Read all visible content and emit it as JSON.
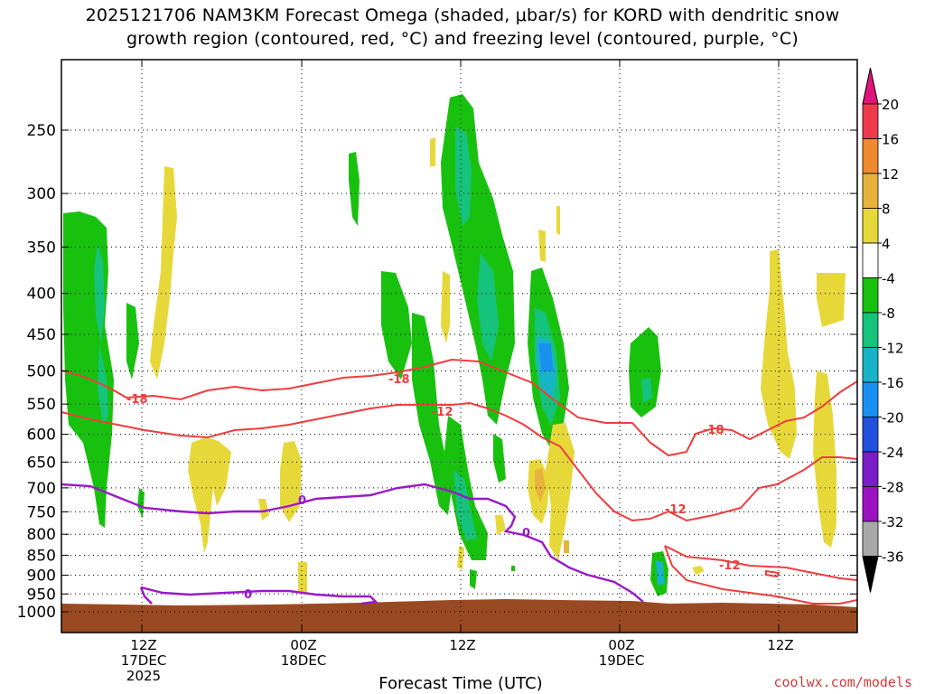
{
  "title_line1": "2025121706 NAM3KM Forecast Omega (shaded, μbar/s) for KORD with dendritic snow",
  "title_line2": "growth region (contoured, red, °C) and freezing level (contoured, purple, °C)",
  "credit": "coolwx.com/models",
  "chart_data": {
    "type": "heatmap",
    "title": "2025121706 NAM3KM Forecast Omega (shaded, μbar/s) for KORD with dendritic snow growth region (contoured, red, °C) and freezing level (contoured, purple, °C)",
    "xlabel": "Forecast Time (UTC)",
    "ylabel": "",
    "y_scale": "log-pressure (inverted)",
    "y_ticks": [
      250,
      300,
      350,
      400,
      450,
      500,
      550,
      600,
      650,
      700,
      750,
      800,
      850,
      900,
      950,
      1000
    ],
    "x_ticks": [
      {
        "line1": "12Z",
        "line2": "17DEC",
        "line3": "2025"
      },
      {
        "line1": "00Z",
        "line2": "18DEC",
        "line3": ""
      },
      {
        "line1": "12Z",
        "line2": "",
        "line3": ""
      },
      {
        "line1": "00Z",
        "line2": "19DEC",
        "line3": ""
      },
      {
        "line1": "12Z",
        "line2": "",
        "line3": ""
      }
    ],
    "grid": "dotted",
    "colorbar": {
      "units": "μbar/s",
      "labels": [
        "20",
        "16",
        "12",
        "8",
        "4",
        "-4",
        "-8",
        "-12",
        "-16",
        "-20",
        "-24",
        "-28",
        "-32",
        "-36"
      ],
      "colors": [
        "#ee3a4c",
        "#ef8a2e",
        "#e8b33c",
        "#e7d83a",
        "#ffffff",
        "#19c10f",
        "#16c37c",
        "#16b4c6",
        "#1890f0",
        "#2050e0",
        "#7a1cc8",
        "#9c12c2",
        "#a8a8a8"
      ],
      "top_arrow_color": "#e0147a",
      "bottom_arrow_color": "#000000"
    },
    "contour_labels": {
      "red": [
        "-18",
        "-18",
        "-12",
        "-18",
        "-12",
        "-12"
      ],
      "purple": [
        "0",
        "0",
        "0"
      ]
    },
    "terrain_color": "#9a4a22"
  }
}
